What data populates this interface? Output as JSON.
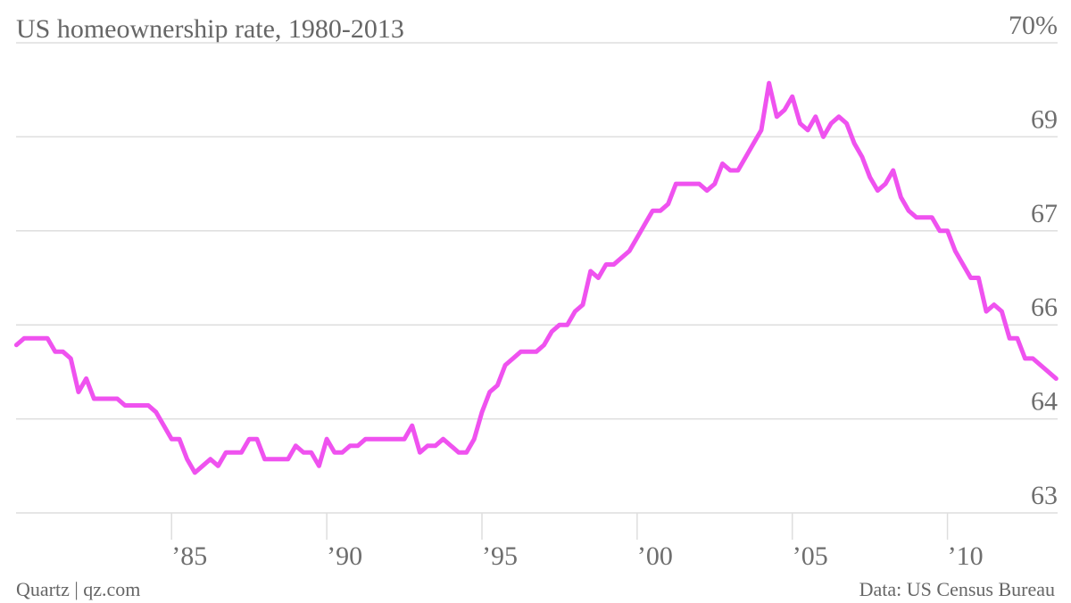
{
  "chart_data": {
    "type": "line",
    "title": "US homeownership rate, 1980-2013",
    "source": "Data: US Census Bureau",
    "credit": "Quartz | qz.com",
    "x": [
      1980,
      1980.25,
      1980.5,
      1980.75,
      1981,
      1981.25,
      1981.5,
      1981.75,
      1982,
      1982.25,
      1982.5,
      1982.75,
      1983,
      1983.25,
      1983.5,
      1983.75,
      1984,
      1984.25,
      1984.5,
      1984.75,
      1985,
      1985.25,
      1985.5,
      1985.75,
      1986,
      1986.25,
      1986.5,
      1986.75,
      1987,
      1987.25,
      1987.5,
      1987.75,
      1988,
      1988.25,
      1988.5,
      1988.75,
      1989,
      1989.25,
      1989.5,
      1989.75,
      1990,
      1990.25,
      1990.5,
      1990.75,
      1991,
      1991.25,
      1991.5,
      1991.75,
      1992,
      1992.25,
      1992.5,
      1992.75,
      1993,
      1993.25,
      1993.5,
      1993.75,
      1994,
      1994.25,
      1994.5,
      1994.75,
      1995,
      1995.25,
      1995.5,
      1995.75,
      1996,
      1996.25,
      1996.5,
      1996.75,
      1997,
      1997.25,
      1997.5,
      1997.75,
      1998,
      1998.25,
      1998.5,
      1998.75,
      1999,
      1999.25,
      1999.5,
      1999.75,
      2000,
      2000.25,
      2000.5,
      2000.75,
      2001,
      2001.25,
      2001.5,
      2001.75,
      2002,
      2002.25,
      2002.5,
      2002.75,
      2003,
      2003.25,
      2003.5,
      2003.75,
      2004,
      2004.25,
      2004.5,
      2004.75,
      2005,
      2005.25,
      2005.5,
      2005.75,
      2006,
      2006.25,
      2006.5,
      2006.75,
      2007,
      2007.25,
      2007.5,
      2007.75,
      2008,
      2008.25,
      2008.5,
      2008.75,
      2009,
      2009.25,
      2009.5,
      2009.75,
      2010,
      2010.25,
      2010.5,
      2010.75,
      2011,
      2011.25,
      2011.5,
      2011.75,
      2012,
      2012.25,
      2012.5,
      2012.75,
      2013,
      2013.25,
      2013.5
    ],
    "series": [
      {
        "name": "Homeownership rate",
        "color": "#ef52ef",
        "values": [
          65.5,
          65.6,
          65.6,
          65.6,
          65.6,
          65.4,
          65.4,
          65.3,
          64.8,
          65.0,
          64.7,
          64.7,
          64.7,
          64.7,
          64.6,
          64.6,
          64.6,
          64.6,
          64.5,
          64.3,
          64.1,
          64.1,
          63.8,
          63.6,
          63.7,
          63.8,
          63.7,
          63.9,
          63.9,
          63.9,
          64.1,
          64.1,
          63.8,
          63.8,
          63.8,
          63.8,
          64.0,
          63.9,
          63.9,
          63.7,
          64.1,
          63.9,
          63.9,
          64.0,
          64.0,
          64.1,
          64.1,
          64.1,
          64.1,
          64.1,
          64.1,
          64.3,
          63.9,
          64.0,
          64.0,
          64.1,
          64.0,
          63.9,
          63.9,
          64.1,
          64.5,
          64.8,
          64.9,
          65.2,
          65.3,
          65.4,
          65.4,
          65.4,
          65.5,
          65.7,
          65.8,
          65.8,
          66.0,
          66.1,
          66.6,
          66.5,
          66.7,
          66.7,
          66.8,
          66.9,
          67.1,
          67.3,
          67.5,
          67.5,
          67.6,
          67.9,
          67.9,
          67.9,
          67.9,
          67.8,
          67.9,
          68.2,
          68.1,
          68.1,
          68.3,
          68.5,
          68.7,
          69.4,
          68.9,
          69.0,
          69.2,
          68.8,
          68.7,
          68.9,
          68.6,
          68.8,
          68.9,
          68.8,
          68.5,
          68.3,
          68.0,
          67.8,
          67.9,
          68.1,
          67.7,
          67.5,
          67.4,
          67.4,
          67.4,
          67.2,
          67.2,
          66.9,
          66.7,
          66.5,
          66.5,
          66.0,
          66.1,
          66.0,
          65.6,
          65.6,
          65.3,
          65.3,
          65.2,
          65.1,
          65.0
        ]
      }
    ],
    "xlim": [
      1979.5,
      2013.75
    ],
    "xticks": [
      {
        "value": 1985,
        "label": "’85"
      },
      {
        "value": 1990,
        "label": "’90"
      },
      {
        "value": 1995,
        "label": "’95"
      },
      {
        "value": 2000,
        "label": "’00"
      },
      {
        "value": 2005,
        "label": "’05"
      },
      {
        "value": 2010,
        "label": "’10"
      }
    ],
    "ylim": [
      63,
      70
    ],
    "yticks": [
      63,
      {
        "value": 64.4,
        "label": "64"
      },
      {
        "value": 65.8,
        "label": "66"
      },
      {
        "value": 67.2,
        "label": "67"
      },
      {
        "value": 68.6,
        "label": "69"
      },
      {
        "value": 70,
        "label": "70%"
      }
    ],
    "grid": true
  }
}
